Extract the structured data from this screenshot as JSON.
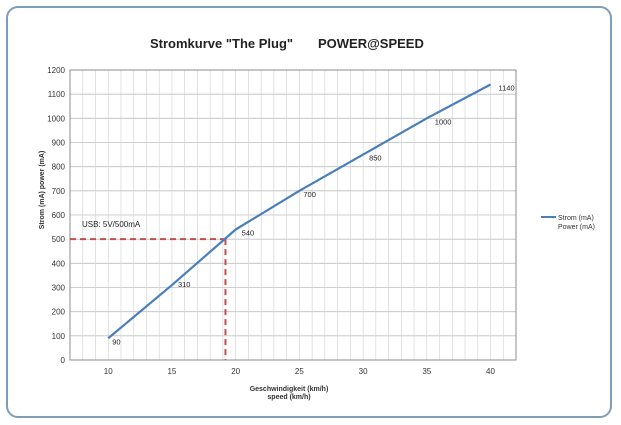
{
  "chart_data": {
    "type": "line",
    "title": "Stromkurve \"The Plug\"",
    "subtitle": "POWER@SPEED",
    "xlabel": "Geschwindigkeit (km/h)",
    "xlabel2": "speed (km/h)",
    "ylabel": "Strom (mA) power (mA)",
    "xlim": [
      7,
      42
    ],
    "ylim": [
      0,
      1200
    ],
    "xticks": [
      10,
      15,
      20,
      25,
      30,
      35,
      40
    ],
    "yticks": [
      0,
      100,
      200,
      300,
      400,
      500,
      600,
      700,
      800,
      900,
      1000,
      1100,
      1200
    ],
    "grid": true,
    "legend_position": "right",
    "series": [
      {
        "name": "Strom (mA)",
        "name2": "Power (mA)",
        "color": "#4a7ebb",
        "x": [
          10,
          15,
          20,
          25,
          30,
          35,
          40
        ],
        "y": [
          90,
          310,
          540,
          700,
          850,
          1000,
          1140
        ]
      }
    ],
    "data_labels": [
      "90",
      "310",
      "540",
      "700",
      "850",
      "1000",
      "1140"
    ],
    "annotation": {
      "text": "USB: 5V/500mA",
      "y": 500,
      "x": 19.2,
      "color": "#c0504d"
    }
  }
}
